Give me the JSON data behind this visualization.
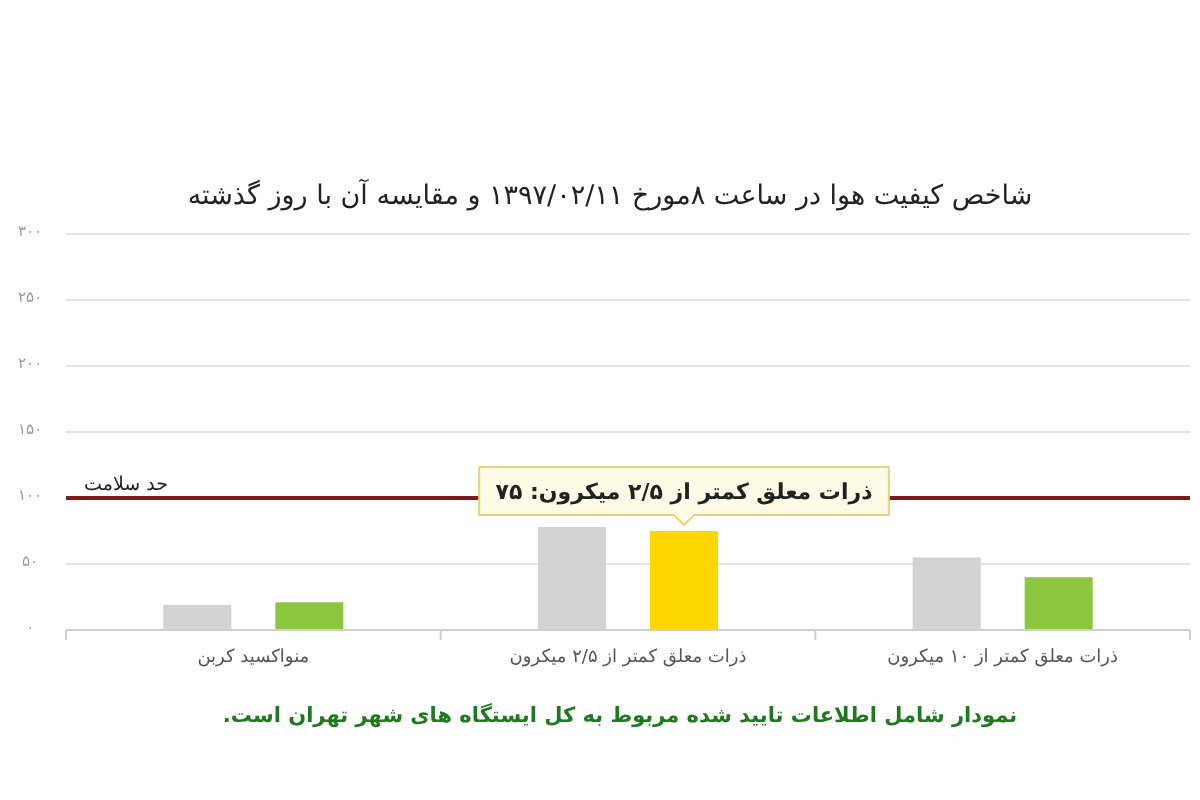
{
  "chart_data": {
    "type": "bar",
    "title": "شاخص کیفیت هوا در ساعت ۸مورخ ۱۳۹۷/۰۲/۱۱ و مقایسه آن با روز گذشته",
    "categories": [
      "منواکسید کربن",
      "ذرات معلق کمتر از ۲/۵ میکرون",
      "ذرات معلق کمتر از ۱۰ میکرون"
    ],
    "series": [
      {
        "color": "#d3d3d3",
        "values": [
          19,
          78,
          55
        ]
      },
      {
        "colors": [
          "#8cc63f",
          "#ffd600",
          "#8cc63f"
        ],
        "values": [
          21,
          75,
          40
        ],
        "value_labels": [
          null,
          "ذرات معلق کمتر از ۲/۵ میکرون: ۷۵",
          null
        ]
      }
    ],
    "ylim": [
      0,
      300
    ],
    "yticks": [
      {
        "value": 0,
        "label": "۰"
      },
      {
        "value": 50,
        "label": "۵۰"
      },
      {
        "value": 100,
        "label": "۱۰۰"
      },
      {
        "value": 150,
        "label": "۱۵۰"
      },
      {
        "value": 200,
        "label": "۲۰۰"
      },
      {
        "value": 250,
        "label": "۲۵۰"
      },
      {
        "value": 300,
        "label": "۳۰۰"
      }
    ],
    "grid": "y",
    "ref_lines": [
      {
        "axis": "y",
        "value": 100,
        "label": "حد سلامت",
        "color": "#7b1a1a"
      }
    ],
    "annotations": [
      "نمودار شامل اطلاعات تایید شده مربوط به کل ایستگاه های شهر تهران است."
    ]
  }
}
